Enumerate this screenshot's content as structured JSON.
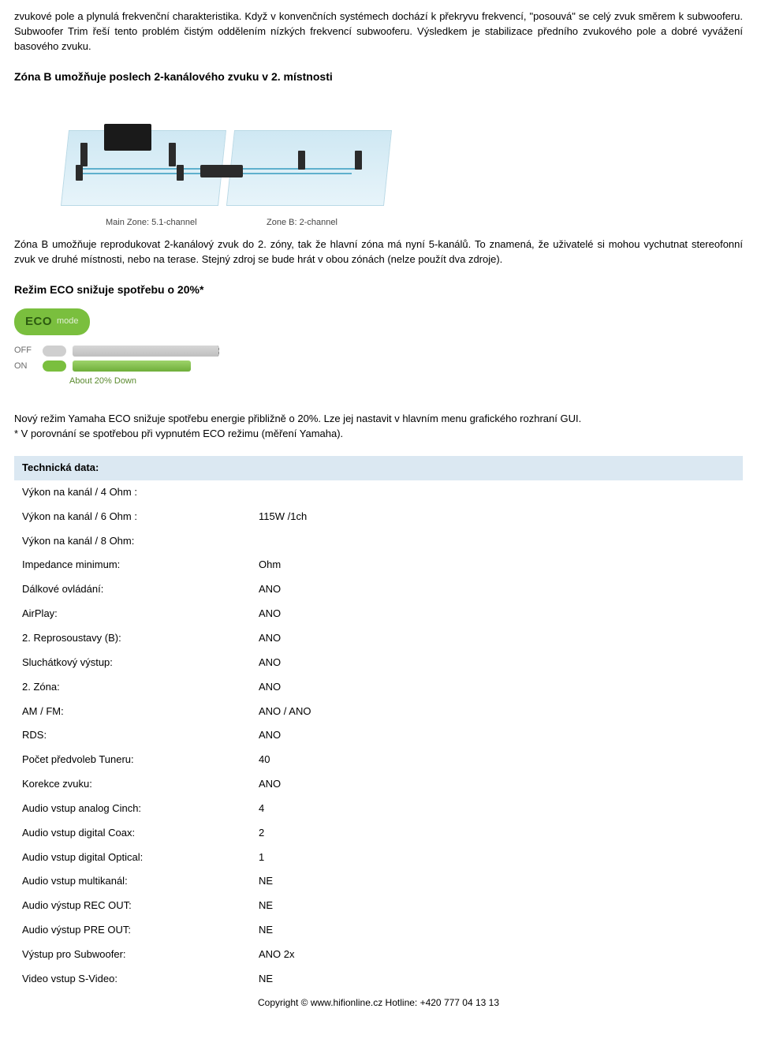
{
  "intro": {
    "para1": "zvukové pole a plynulá frekvenční charakteristika. Když v konvenčních systémech dochází k překryvu frekvencí, \"posouvá\" se celý zvuk směrem k subwooferu. Subwoofer Trim řeší tento problém čistým oddělením nízkých frekvencí subwooferu. Výsledkem je stabilizace předního zvukového pole a dobré vyvážení basového zvuku.",
    "heading1": "Zóna B umožňuje poslech 2-kanálového zvuku v 2. místnosti"
  },
  "zone_diagram": {
    "caption_main": "Main Zone: 5.1-channel",
    "caption_b": "Zone B: 2-channel"
  },
  "zone_para": "Zóna B umožňuje reprodukovat 2-kanálový zvuk do 2. zóny, tak že hlavní zóna má nyní 5-kanálů. To znamená, že uživatelé si mohou vychutnat stereofonní zvuk ve druhé místnosti, nebo na terase. Stejný zdroj se bude hrát v obou zónách (nelze použít dva zdroje).",
  "eco": {
    "heading": "Režim ECO snižuje spotřebu o 20%*",
    "badge_eco": "ECO",
    "badge_mode": "mode",
    "label_off": "OFF",
    "label_on": "ON",
    "down_text": "About 20% Down",
    "para": "Nový režim Yamaha ECO snižuje spotřebu energie přibližně o 20%. Lze jej nastavit v hlavním menu grafického rozhraní GUI.\n* V porovnání se spotřebou při vypnutém ECO režimu (měření Yamaha)."
  },
  "tech": {
    "header": "Technická data:",
    "rows": [
      {
        "label": "Výkon na kanál / 4 Ohm :",
        "value": ""
      },
      {
        "label": "Výkon na kanál / 6 Ohm :",
        "value": "115W /1ch"
      },
      {
        "label": "Výkon na kanál / 8 Ohm:",
        "value": ""
      },
      {
        "label": "Impedance minimum:",
        "value": "Ohm"
      },
      {
        "label": "Dálkové ovládání:",
        "value": "ANO"
      },
      {
        "label": "AirPlay:",
        "value": "ANO"
      },
      {
        "label": "2. Reprosoustavy (B):",
        "value": "ANO"
      },
      {
        "label": "Sluchátkový výstup:",
        "value": "ANO"
      },
      {
        "label": "2. Zóna:",
        "value": "ANO"
      },
      {
        "label": "AM / FM:",
        "value": "ANO / ANO"
      },
      {
        "label": "RDS:",
        "value": "ANO"
      },
      {
        "label": "Počet předvoleb Tuneru:",
        "value": "40"
      },
      {
        "label": "Korekce zvuku:",
        "value": "ANO"
      },
      {
        "label": "Audio vstup analog Cinch:",
        "value": "4"
      },
      {
        "label": "Audio vstup digital Coax:",
        "value": "2"
      },
      {
        "label": "Audio vstup digital Optical:",
        "value": "1"
      },
      {
        "label": "Audio vstup multikanál:",
        "value": "NE"
      },
      {
        "label": "Audio výstup REC OUT:",
        "value": "NE"
      },
      {
        "label": "Audio výstup PRE OUT:",
        "value": "NE"
      },
      {
        "label": "Výstup pro Subwoofer:",
        "value": "ANO 2x"
      },
      {
        "label": "Video vstup S-Video:",
        "value": "NE"
      }
    ]
  },
  "footer": "Copyright © www.hifionline.cz  Hotline: +420 777 04 13 13",
  "colors": {
    "eco_green": "#7abf3e",
    "tech_header_bg": "#dbe8f2",
    "zone_floor": "#cfe8f3"
  }
}
